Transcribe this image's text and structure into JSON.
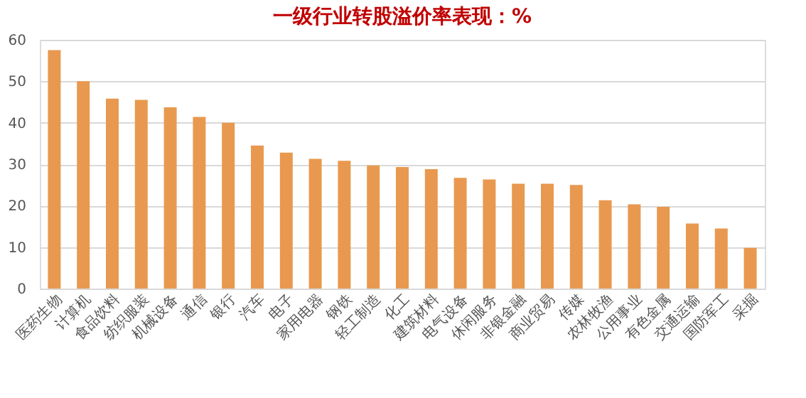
{
  "chart_data": {
    "type": "bar",
    "title": "一级行业转股溢价率表现：%",
    "categories": [
      "医药生物",
      "计算机",
      "食品饮料",
      "纺织服装",
      "机械设备",
      "通信",
      "银行",
      "汽车",
      "电子",
      "家用电器",
      "钢铁",
      "轻工制造",
      "化工",
      "建筑材料",
      "电气设备",
      "休闲服务",
      "非银金融",
      "商业贸易",
      "传媒",
      "农林牧渔",
      "公用事业",
      "有色金属",
      "交通运输",
      "国防军工",
      "采掘"
    ],
    "values": [
      57.5,
      50,
      45.8,
      45.5,
      43.7,
      41.4,
      40,
      34.5,
      32.8,
      31.3,
      30.8,
      29.7,
      29.3,
      28.8,
      26.7,
      26.3,
      25.3,
      25.3,
      25,
      21.3,
      20.3,
      19.7,
      15.7,
      14.5,
      9.8
    ],
    "color": "#e8994f",
    "ylim": [
      0,
      60
    ],
    "yticks": [
      0,
      10,
      20,
      30,
      40,
      50,
      60
    ],
    "grid": "y"
  }
}
